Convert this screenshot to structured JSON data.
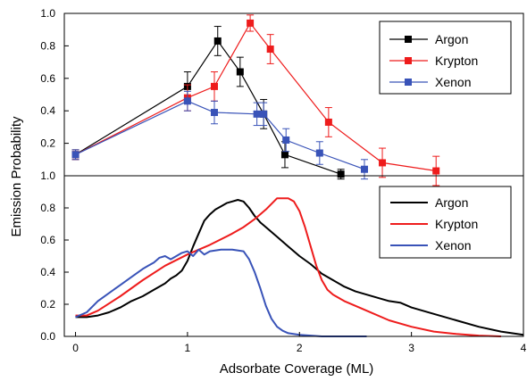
{
  "chart_data": [
    {
      "type": "line",
      "panel": "top",
      "markers": "square",
      "error_bars": true,
      "xlabel": "Adsorbate Coverage (ML)",
      "ylabel": "Emission Probability",
      "xlim": [
        -0.1,
        4.0
      ],
      "ylim": [
        0.0,
        1.0
      ],
      "y_ticks": [
        0.2,
        0.4,
        0.6,
        0.8
      ],
      "y_tick_labels": [
        "0.2",
        "0.4",
        "0.6",
        "0.8"
      ],
      "y_axis_top_label": "1.0",
      "y_axis_bottom_label": "1.0",
      "legend_position": "top-right",
      "series": [
        {
          "name": "Argon",
          "color": "#000000",
          "points": [
            {
              "x": 0.0,
              "y": 0.13,
              "err": 0.03
            },
            {
              "x": 1.0,
              "y": 0.55,
              "err": 0.09
            },
            {
              "x": 1.27,
              "y": 0.83,
              "err": 0.09
            },
            {
              "x": 1.47,
              "y": 0.64,
              "err": 0.09
            },
            {
              "x": 1.68,
              "y": 0.38,
              "err": 0.09
            },
            {
              "x": 1.87,
              "y": 0.13,
              "err": 0.08
            },
            {
              "x": 2.37,
              "y": 0.01,
              "err": 0.03
            }
          ]
        },
        {
          "name": "Krypton",
          "color": "#ee1c1c",
          "points": [
            {
              "x": 0.0,
              "y": 0.13,
              "err": 0.03
            },
            {
              "x": 1.0,
              "y": 0.48,
              "err": 0.08
            },
            {
              "x": 1.24,
              "y": 0.55,
              "err": 0.09
            },
            {
              "x": 1.56,
              "y": 0.94,
              "err": 0.05
            },
            {
              "x": 1.74,
              "y": 0.78,
              "err": 0.09
            },
            {
              "x": 2.26,
              "y": 0.33,
              "err": 0.09
            },
            {
              "x": 2.74,
              "y": 0.08,
              "err": 0.09
            },
            {
              "x": 3.22,
              "y": 0.03,
              "err": 0.09
            }
          ]
        },
        {
          "name": "Xenon",
          "color": "#3953b8",
          "points": [
            {
              "x": 0.0,
              "y": 0.13,
              "err": 0.03
            },
            {
              "x": 1.0,
              "y": 0.46,
              "err": 0.06
            },
            {
              "x": 1.24,
              "y": 0.39,
              "err": 0.07
            },
            {
              "x": 1.62,
              "y": 0.38,
              "err": 0.07
            },
            {
              "x": 1.68,
              "y": 0.38,
              "err": 0.07
            },
            {
              "x": 1.88,
              "y": 0.22,
              "err": 0.07
            },
            {
              "x": 2.18,
              "y": 0.14,
              "err": 0.07
            },
            {
              "x": 2.58,
              "y": 0.04,
              "err": 0.06
            }
          ]
        }
      ]
    },
    {
      "type": "line",
      "panel": "bottom",
      "xlabel": "Adsorbate Coverage (ML)",
      "ylabel": "Emission Probability",
      "xlim": [
        -0.1,
        4.0
      ],
      "ylim": [
        0.0,
        1.0
      ],
      "x_ticks": [
        0,
        1,
        2,
        3,
        4
      ],
      "y_ticks": [
        0.0,
        0.2,
        0.4,
        0.6,
        0.8
      ],
      "y_tick_labels": [
        "0.0",
        "0.2",
        "0.4",
        "0.6",
        "0.8"
      ],
      "legend_position": "top-right",
      "series": [
        {
          "name": "Argon",
          "color": "#000000",
          "x": [
            0.0,
            0.1,
            0.2,
            0.3,
            0.4,
            0.5,
            0.6,
            0.7,
            0.8,
            0.85,
            0.9,
            0.95,
            1.0,
            1.05,
            1.1,
            1.15,
            1.2,
            1.25,
            1.3,
            1.35,
            1.4,
            1.45,
            1.5,
            1.55,
            1.6,
            1.65,
            1.7,
            1.8,
            1.9,
            2.0,
            2.1,
            2.2,
            2.3,
            2.4,
            2.5,
            2.6,
            2.7,
            2.8,
            2.9,
            3.0,
            3.2,
            3.4,
            3.6,
            3.8,
            4.0
          ],
          "y": [
            0.12,
            0.12,
            0.13,
            0.15,
            0.18,
            0.22,
            0.25,
            0.29,
            0.33,
            0.36,
            0.38,
            0.41,
            0.47,
            0.56,
            0.64,
            0.72,
            0.76,
            0.79,
            0.81,
            0.83,
            0.84,
            0.85,
            0.84,
            0.8,
            0.75,
            0.71,
            0.68,
            0.62,
            0.56,
            0.5,
            0.45,
            0.39,
            0.35,
            0.31,
            0.28,
            0.26,
            0.24,
            0.22,
            0.21,
            0.18,
            0.14,
            0.1,
            0.06,
            0.03,
            0.01
          ]
        },
        {
          "name": "Krypton",
          "color": "#ee1c1c",
          "x": [
            0.0,
            0.1,
            0.2,
            0.4,
            0.6,
            0.8,
            1.0,
            1.2,
            1.4,
            1.5,
            1.6,
            1.7,
            1.8,
            1.9,
            1.95,
            2.0,
            2.05,
            2.1,
            2.15,
            2.2,
            2.25,
            2.3,
            2.4,
            2.5,
            2.6,
            2.8,
            3.0,
            3.2,
            3.4,
            3.6,
            3.8
          ],
          "y": [
            0.13,
            0.13,
            0.16,
            0.25,
            0.35,
            0.44,
            0.51,
            0.57,
            0.64,
            0.68,
            0.73,
            0.79,
            0.86,
            0.86,
            0.84,
            0.78,
            0.68,
            0.56,
            0.44,
            0.35,
            0.29,
            0.26,
            0.22,
            0.19,
            0.16,
            0.1,
            0.06,
            0.03,
            0.015,
            0.005,
            0.0
          ]
        },
        {
          "name": "Xenon",
          "color": "#3953b8",
          "x": [
            0.0,
            0.1,
            0.2,
            0.3,
            0.4,
            0.5,
            0.6,
            0.65,
            0.7,
            0.75,
            0.8,
            0.85,
            0.9,
            0.95,
            1.0,
            1.05,
            1.1,
            1.15,
            1.2,
            1.3,
            1.4,
            1.5,
            1.55,
            1.6,
            1.65,
            1.7,
            1.75,
            1.8,
            1.85,
            1.9,
            2.0,
            2.1,
            2.2,
            2.4,
            2.6
          ],
          "y": [
            0.12,
            0.15,
            0.22,
            0.27,
            0.32,
            0.37,
            0.42,
            0.44,
            0.46,
            0.49,
            0.5,
            0.48,
            0.5,
            0.52,
            0.53,
            0.5,
            0.54,
            0.51,
            0.53,
            0.54,
            0.54,
            0.53,
            0.48,
            0.4,
            0.3,
            0.19,
            0.11,
            0.06,
            0.035,
            0.02,
            0.01,
            0.005,
            0.0,
            0.0,
            0.0
          ]
        }
      ]
    }
  ]
}
